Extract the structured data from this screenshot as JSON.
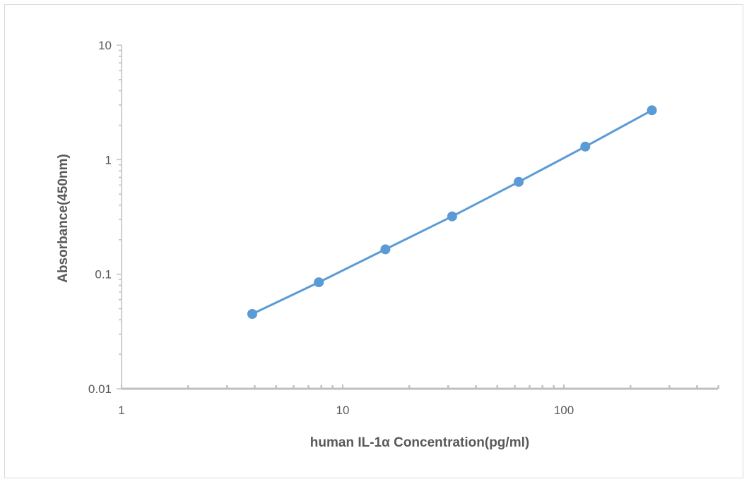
{
  "chart_data": {
    "type": "line",
    "xlabel": "human  IL-1α  Concentration(pg/ml)",
    "ylabel": "Absorbance(450nm)",
    "x_scale": "log",
    "y_scale": "log",
    "xlim": [
      1,
      500
    ],
    "ylim": [
      0.01,
      10
    ],
    "x_ticks": [
      "1",
      "10",
      "100"
    ],
    "y_ticks": [
      "0.01",
      "0.1",
      "1",
      "10"
    ],
    "grid": false,
    "legend": "none",
    "series": [
      {
        "color": "#5b9bd5",
        "x": [
          3.9,
          7.8,
          15.6,
          31.25,
          62.5,
          125,
          250
        ],
        "y": [
          0.045,
          0.085,
          0.165,
          0.32,
          0.64,
          1.3,
          2.7
        ]
      }
    ]
  }
}
